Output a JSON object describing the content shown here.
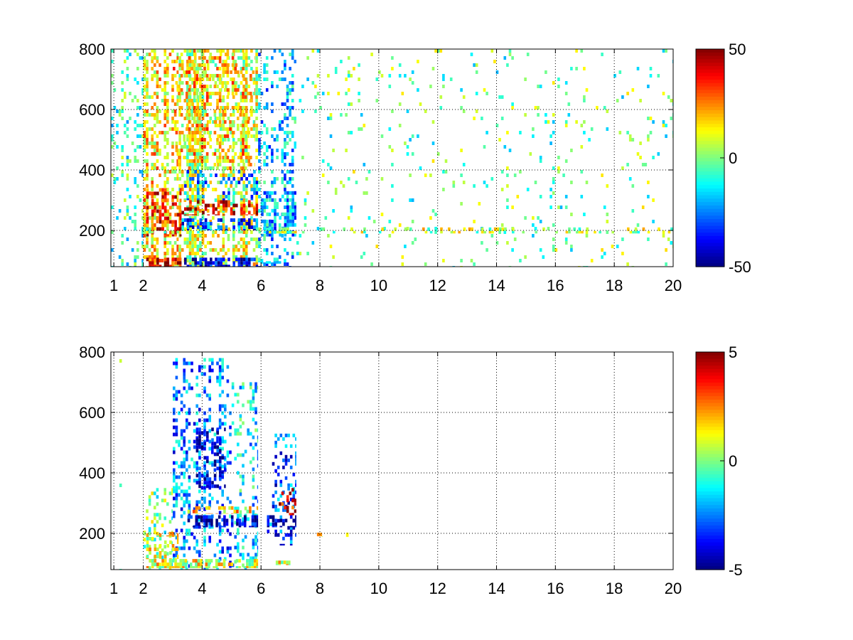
{
  "chart_data": [
    {
      "type": "heatmap",
      "title": "",
      "xlabel": "",
      "ylabel": "",
      "xlim": [
        0.9,
        20
      ],
      "ylim": [
        80,
        800
      ],
      "x_ticks": [
        1,
        2,
        4,
        6,
        8,
        10,
        12,
        14,
        16,
        18,
        20
      ],
      "x_tick_labels": [
        "1",
        "2",
        "4",
        "6",
        "8",
        "10",
        "12",
        "14",
        "16",
        "18",
        "20"
      ],
      "y_ticks": [
        200,
        400,
        600,
        800
      ],
      "y_tick_labels": [
        "200",
        "400",
        "600",
        "800"
      ],
      "grid": true,
      "colormap": "jet",
      "colorbar": {
        "range": [
          -50,
          50
        ],
        "ticks": [
          -50,
          0,
          50
        ],
        "tick_labels": [
          "-50",
          "0",
          "50"
        ]
      },
      "columns": [
        {
          "x0": 0.9,
          "x1": 2.0,
          "y0": 80,
          "y1": 800,
          "value": -8,
          "density": 0.3
        },
        {
          "x0": 2.0,
          "x1": 3.2,
          "y0": 80,
          "y1": 800,
          "value": 15,
          "density": 0.55
        },
        {
          "x0": 3.2,
          "x1": 5.9,
          "y0": 80,
          "y1": 800,
          "value": 8,
          "density": 0.7
        },
        {
          "x0": 5.9,
          "x1": 7.2,
          "y0": 80,
          "y1": 800,
          "value": -18,
          "density": 0.35
        },
        {
          "x0": 7.2,
          "x1": 20.0,
          "y0": 80,
          "y1": 800,
          "value": -2,
          "density": 0.07
        }
      ],
      "bands": [
        {
          "x0": 2.1,
          "x1": 3.3,
          "y0": 80,
          "y1": 110,
          "value": 45,
          "density": 0.95
        },
        {
          "x0": 3.3,
          "x1": 5.9,
          "y0": 80,
          "y1": 110,
          "value": -42,
          "density": 0.85
        },
        {
          "x0": 5.9,
          "x1": 6.8,
          "y0": 90,
          "y1": 110,
          "value": -18,
          "density": 0.7
        },
        {
          "x0": 2.1,
          "x1": 3.3,
          "y0": 180,
          "y1": 340,
          "value": 35,
          "density": 0.7
        },
        {
          "x0": 3.3,
          "x1": 5.9,
          "y0": 200,
          "y1": 240,
          "value": -30,
          "density": 0.75
        },
        {
          "x0": 3.3,
          "x1": 5.9,
          "y0": 250,
          "y1": 300,
          "value": 40,
          "density": 0.65
        },
        {
          "x0": 3.3,
          "x1": 5.9,
          "y0": 300,
          "y1": 400,
          "value": -22,
          "density": 0.45
        },
        {
          "x0": 6.0,
          "x1": 7.2,
          "y0": 180,
          "y1": 330,
          "value": -22,
          "density": 0.6
        },
        {
          "x0": 2.0,
          "x1": 20.0,
          "y0": 190,
          "y1": 210,
          "value": 5,
          "density": 0.35
        },
        {
          "x0": 3.0,
          "x1": 5.8,
          "y0": 400,
          "y1": 800,
          "value": 18,
          "density": 0.45
        }
      ]
    },
    {
      "type": "heatmap",
      "title": "",
      "xlabel": "",
      "ylabel": "",
      "xlim": [
        0.9,
        20
      ],
      "ylim": [
        80,
        800
      ],
      "x_ticks": [
        1,
        2,
        4,
        6,
        8,
        10,
        12,
        14,
        16,
        18,
        20
      ],
      "x_tick_labels": [
        "1",
        "2",
        "4",
        "6",
        "8",
        "10",
        "12",
        "14",
        "16",
        "18",
        "20"
      ],
      "y_ticks": [
        200,
        400,
        600,
        800
      ],
      "y_tick_labels": [
        "200",
        "400",
        "600",
        "800"
      ],
      "grid": true,
      "colormap": "jet",
      "colorbar": {
        "range": [
          -5,
          5
        ],
        "ticks": [
          -5,
          0,
          5
        ],
        "tick_labels": [
          "-5",
          "0",
          "5"
        ]
      },
      "columns": [
        {
          "x0": 1.1,
          "x1": 1.3,
          "y0": 80,
          "y1": 800,
          "value": -1,
          "density": 0.03
        },
        {
          "x0": 2.0,
          "x1": 3.0,
          "y0": 80,
          "y1": 350,
          "value": 0,
          "density": 0.25
        },
        {
          "x0": 3.0,
          "x1": 5.0,
          "y0": 80,
          "y1": 780,
          "value": -2.5,
          "density": 0.4
        },
        {
          "x0": 5.0,
          "x1": 5.9,
          "y0": 80,
          "y1": 700,
          "value": -1.5,
          "density": 0.35
        },
        {
          "x0": 6.2,
          "x1": 7.2,
          "y0": 160,
          "y1": 530,
          "value": -3,
          "density": 0.3
        }
      ],
      "bands": [
        {
          "x0": 2.1,
          "x1": 5.9,
          "y0": 85,
          "y1": 115,
          "value": 1,
          "density": 0.9
        },
        {
          "x0": 2.1,
          "x1": 3.2,
          "y0": 115,
          "y1": 200,
          "value": 0.8,
          "density": 0.6
        },
        {
          "x0": 3.5,
          "x1": 5.9,
          "y0": 220,
          "y1": 260,
          "value": -4.5,
          "density": 0.85
        },
        {
          "x0": 3.5,
          "x1": 5.9,
          "y0": 265,
          "y1": 290,
          "value": 1.5,
          "density": 0.55
        },
        {
          "x0": 3.7,
          "x1": 4.8,
          "y0": 350,
          "y1": 550,
          "value": -4.2,
          "density": 0.5
        },
        {
          "x0": 6.2,
          "x1": 7.2,
          "y0": 220,
          "y1": 260,
          "value": -4.5,
          "density": 0.75
        },
        {
          "x0": 6.6,
          "x1": 7.2,
          "y0": 260,
          "y1": 350,
          "value": 4,
          "density": 0.4
        },
        {
          "x0": 2.0,
          "x1": 3.5,
          "y0": 190,
          "y1": 205,
          "value": 1,
          "density": 0.5
        },
        {
          "x0": 6.5,
          "x1": 7.0,
          "y0": 95,
          "y1": 110,
          "value": 1.2,
          "density": 0.8
        },
        {
          "x0": 7.9,
          "x1": 8.1,
          "y0": 188,
          "y1": 202,
          "value": 0.8,
          "density": 0.6
        },
        {
          "x0": 8.8,
          "x1": 9.0,
          "y0": 188,
          "y1": 202,
          "value": 0.8,
          "density": 0.6
        }
      ]
    }
  ]
}
